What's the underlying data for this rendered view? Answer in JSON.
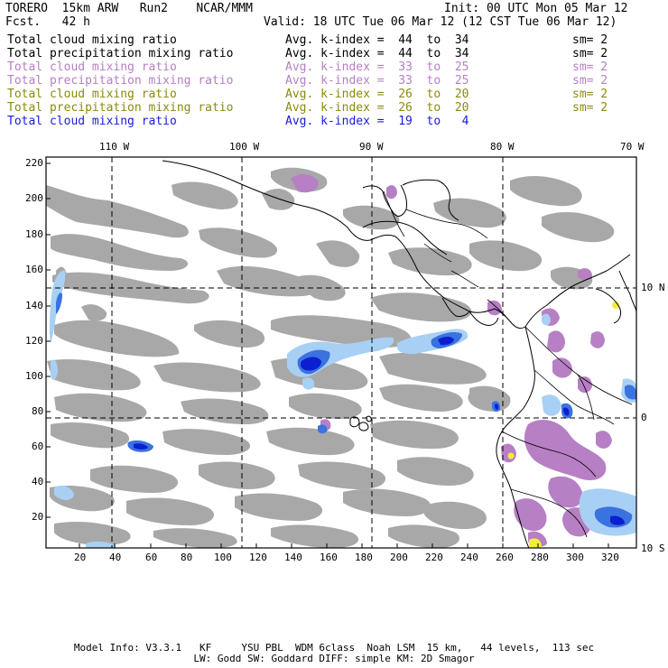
{
  "header": {
    "model_line": "TORERO  15km ARW   Run2    NCAR/MMM",
    "init_line": "Init: 00 UTC Mon 05 Mar 12",
    "fcst_line": "Fcst.   42 h",
    "valid_line": "Valid: 18 UTC Tue 06 Mar 12 (12 CST Tue 06 Mar 12)"
  },
  "legend": [
    {
      "field": "Total cloud mixing ratio",
      "kindex": "Avg. k-index =  44  to  34",
      "sm": "sm= 2",
      "color": "#000000"
    },
    {
      "field": "Total precipitation mixing ratio",
      "kindex": "Avg. k-index =  44  to  34",
      "sm": "sm= 2",
      "color": "#000000"
    },
    {
      "field": "Total cloud mixing ratio",
      "kindex": "Avg. k-index =  33  to  25",
      "sm": "sm= 2",
      "color": "#b77fc4"
    },
    {
      "field": "Total precipitation mixing ratio",
      "kindex": "Avg. k-index =  33  to  25",
      "sm": "sm= 2",
      "color": "#b77fc4"
    },
    {
      "field": "Total cloud mixing ratio",
      "kindex": "Avg. k-index =  26  to  20",
      "sm": "sm= 2",
      "color": "#8a8a10"
    },
    {
      "field": "Total precipitation mixing ratio",
      "kindex": "Avg. k-index =  26  to  20",
      "sm": "sm= 2",
      "color": "#8a8a10"
    },
    {
      "field": "Total cloud mixing ratio",
      "kindex": "Avg. k-index =  19  to   4",
      "sm": "",
      "color": "#1a1adc"
    }
  ],
  "map": {
    "lon_labels": [
      "110 W",
      "100 W",
      "90 W",
      "80 W",
      "70 W"
    ],
    "lat_labels": [
      "10 N",
      "0",
      "10 S"
    ],
    "y_ticks": [
      "220",
      "200",
      "180",
      "160",
      "140",
      "120",
      "100",
      "80",
      "60",
      "40",
      "20"
    ],
    "x_ticks": [
      "20",
      "40",
      "60",
      "80",
      "100",
      "120",
      "140",
      "160",
      "180",
      "200",
      "220",
      "240",
      "260",
      "280",
      "300",
      "320"
    ],
    "colors": {
      "cloud_grey": "#a8a8a8",
      "purple": "#b77fc4",
      "yellow": "#f2ec3a",
      "light_blue": "#a8d0f5",
      "mid_blue": "#3a72e0",
      "dark_blue": "#0c1fd0"
    }
  },
  "footer": {
    "line1": "Model Info: V3.3.1   KF     YSU PBL  WDM 6class  Noah LSM  15 km,   44 levels,  113 sec",
    "line2": "LW: Godd SW: Goddard DIFF: simple KM: 2D Smagor"
  }
}
